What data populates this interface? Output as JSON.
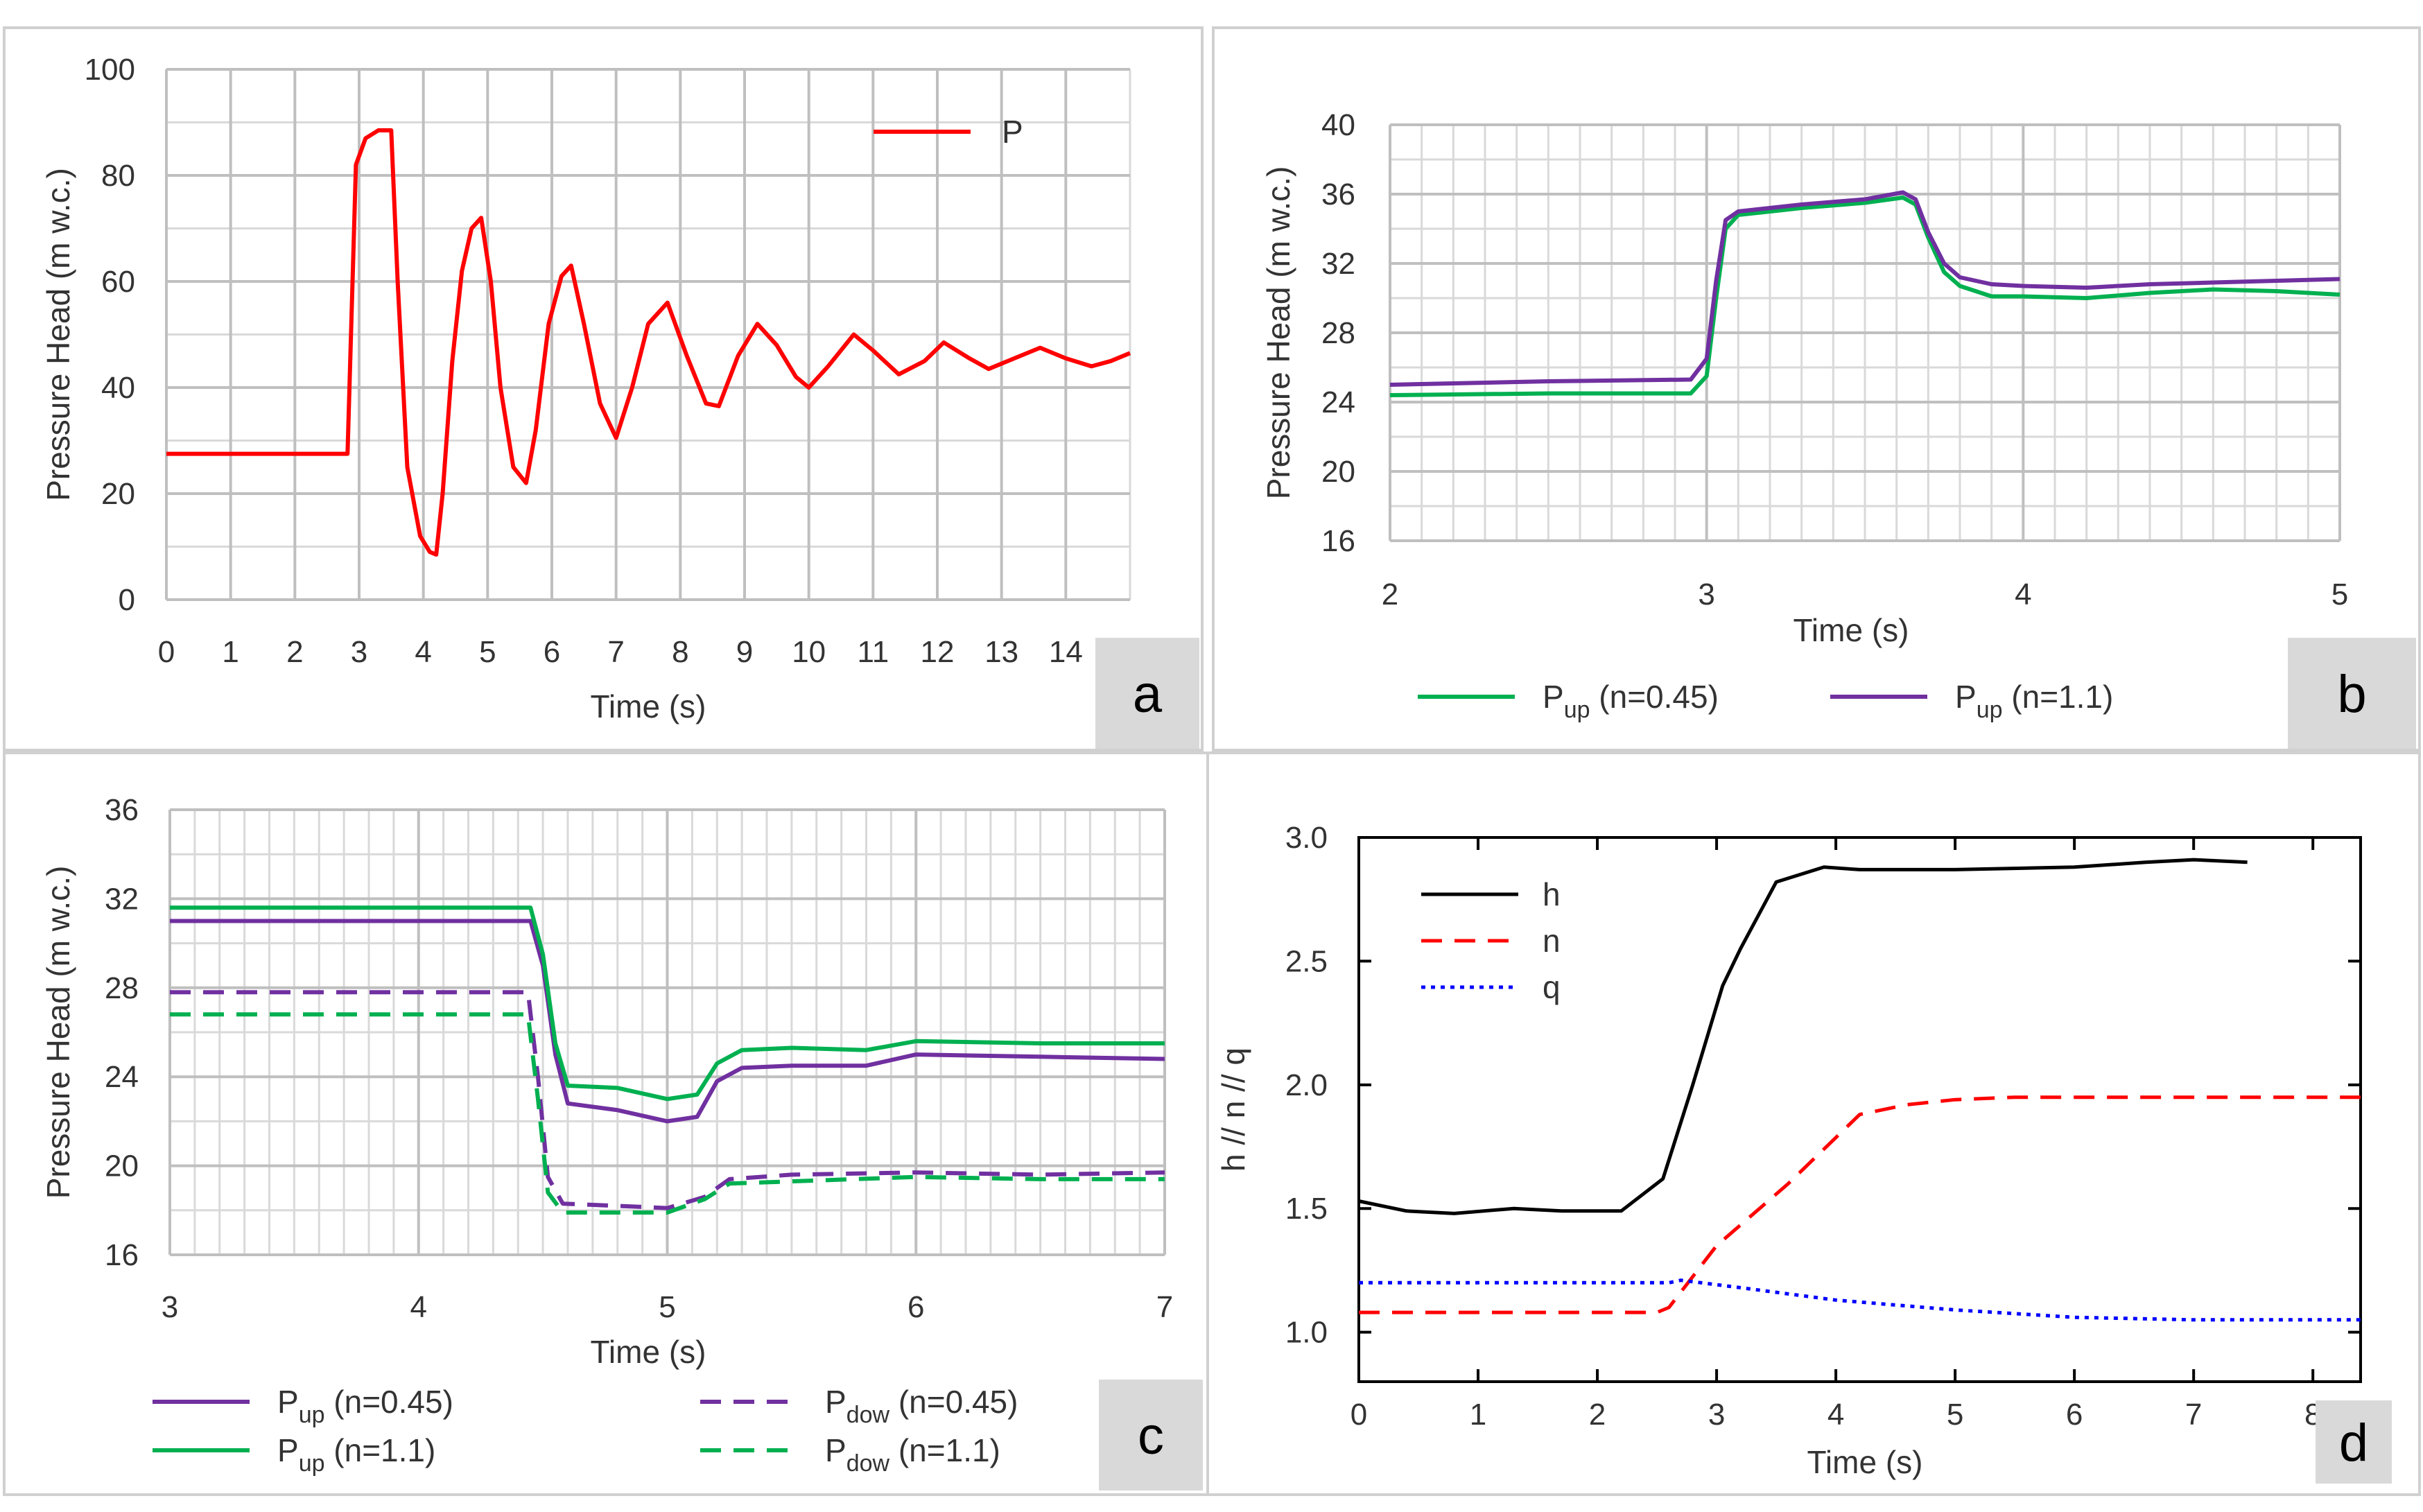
{
  "figure": {
    "panel_count": 4
  },
  "chart_data": [
    {
      "panel": "a",
      "type": "line",
      "title": "",
      "xlabel": "Time (s)",
      "ylabel": "Pressure Head (m w.c.)",
      "xlim": [
        0,
        15
      ],
      "ylim": [
        0,
        100
      ],
      "xticks": [
        "0",
        "1",
        "2",
        "3",
        "4",
        "5",
        "6",
        "7",
        "8",
        "9",
        "10",
        "11",
        "12",
        "13",
        "14"
      ],
      "yticks": [
        "0",
        "20",
        "40",
        "60",
        "80",
        "100"
      ],
      "grid": true,
      "legend_position": "top-right",
      "series": [
        {
          "name": "P",
          "color": "#ff0000",
          "dash": "solid",
          "x": [
            0,
            2.82,
            2.95,
            3.1,
            3.3,
            3.5,
            3.6,
            3.75,
            3.95,
            4.1,
            4.2,
            4.3,
            4.45,
            4.6,
            4.75,
            4.9,
            5.05,
            5.2,
            5.4,
            5.6,
            5.75,
            5.95,
            6.15,
            6.3,
            6.5,
            6.75,
            7.0,
            7.25,
            7.5,
            7.8,
            8.1,
            8.4,
            8.6,
            8.9,
            9.2,
            9.5,
            9.8,
            10.0,
            10.3,
            10.7,
            11.0,
            11.4,
            11.8,
            12.1,
            12.5,
            12.8,
            13.2,
            13.6,
            14.0,
            14.4,
            14.7,
            15.0
          ],
          "y": [
            27.5,
            27.5,
            82,
            87,
            88.5,
            88.5,
            60,
            25,
            12,
            9,
            8.5,
            20,
            45,
            62,
            70,
            72,
            60,
            40,
            25,
            22,
            32,
            52,
            61,
            63,
            52,
            37,
            30.5,
            40,
            52,
            56,
            46,
            37,
            36.5,
            46,
            52,
            48,
            42,
            40,
            44,
            50,
            47,
            42.5,
            45,
            48.5,
            45.5,
            43.5,
            45.5,
            47.5,
            45.5,
            44,
            45,
            46.5
          ]
        }
      ],
      "panel_label": "a"
    },
    {
      "panel": "b",
      "type": "line",
      "title": "",
      "xlabel": "Time (s)",
      "ylabel": "Pressure Head (m w.c.)",
      "xlim": [
        2,
        5
      ],
      "ylim": [
        16,
        40
      ],
      "xticks": [
        "2",
        "3",
        "4",
        "5"
      ],
      "yticks": [
        "16",
        "20",
        "24",
        "28",
        "32",
        "36",
        "40"
      ],
      "grid": true,
      "legend_position": "bottom",
      "series": [
        {
          "name_main": "P",
          "name_sub": "up",
          "name_suffix": " (n=0.45)",
          "color": "#00b050",
          "dash": "solid",
          "x": [
            2.0,
            2.5,
            2.95,
            3.0,
            3.03,
            3.06,
            3.1,
            3.3,
            3.5,
            3.62,
            3.66,
            3.7,
            3.75,
            3.8,
            3.9,
            4.0,
            4.2,
            4.4,
            4.6,
            4.8,
            5.0
          ],
          "y": [
            24.4,
            24.5,
            24.5,
            25.5,
            30,
            34,
            34.8,
            35.2,
            35.5,
            35.8,
            35.4,
            33.5,
            31.5,
            30.7,
            30.1,
            30.1,
            30.0,
            30.3,
            30.5,
            30.4,
            30.2
          ]
        },
        {
          "name_main": "P",
          "name_sub": "up",
          "name_suffix": " (n=1.1)",
          "color": "#7030a0",
          "dash": "solid",
          "x": [
            2.0,
            2.5,
            2.95,
            3.0,
            3.03,
            3.06,
            3.1,
            3.3,
            3.5,
            3.62,
            3.66,
            3.7,
            3.75,
            3.8,
            3.9,
            4.0,
            4.2,
            4.4,
            4.6,
            4.8,
            5.0
          ],
          "y": [
            25.0,
            25.2,
            25.3,
            26.5,
            31,
            34.5,
            35.0,
            35.4,
            35.7,
            36.1,
            35.7,
            33.8,
            32.0,
            31.2,
            30.8,
            30.7,
            30.6,
            30.8,
            30.9,
            31.0,
            31.1
          ]
        }
      ],
      "panel_label": "b"
    },
    {
      "panel": "c",
      "type": "line",
      "title": "",
      "xlabel": "Time (s)",
      "ylabel": "Pressure Head (m w.c.)",
      "xlim": [
        3,
        7
      ],
      "ylim": [
        16,
        36
      ],
      "xticks": [
        "3",
        "4",
        "5",
        "6",
        "7"
      ],
      "yticks": [
        "16",
        "20",
        "24",
        "28",
        "32",
        "36"
      ],
      "grid": true,
      "legend_position": "bottom",
      "series": [
        {
          "name_main": "P",
          "name_sub": "up",
          "name_suffix": " (n=0.45)",
          "color": "#7030a0",
          "dash": "solid",
          "x": [
            3.0,
            3.5,
            4.0,
            4.45,
            4.5,
            4.55,
            4.6,
            4.8,
            5.0,
            5.12,
            5.2,
            5.3,
            5.5,
            5.8,
            6.0,
            6.5,
            7.0
          ],
          "y": [
            31.0,
            31.0,
            31.0,
            31.0,
            29.0,
            25.0,
            22.8,
            22.5,
            22.0,
            22.2,
            23.8,
            24.4,
            24.5,
            24.5,
            25.0,
            24.9,
            24.8
          ]
        },
        {
          "name_main": "P",
          "name_sub": "up",
          "name_suffix": " (n=1.1)",
          "color": "#00b050",
          "dash": "solid",
          "x": [
            3.0,
            3.5,
            4.0,
            4.45,
            4.5,
            4.55,
            4.6,
            4.8,
            5.0,
            5.12,
            5.2,
            5.3,
            5.5,
            5.8,
            6.0,
            6.5,
            7.0
          ],
          "y": [
            31.6,
            31.6,
            31.6,
            31.6,
            29.5,
            25.5,
            23.6,
            23.5,
            23.0,
            23.2,
            24.6,
            25.2,
            25.3,
            25.2,
            25.6,
            25.5,
            25.5
          ]
        },
        {
          "name_main": "P",
          "name_sub": "dow",
          "name_suffix": " (n=0.45)",
          "color": "#7030a0",
          "dash": "dashed",
          "x": [
            3.0,
            3.5,
            4.0,
            4.44,
            4.48,
            4.52,
            4.58,
            4.8,
            5.0,
            5.15,
            5.25,
            5.5,
            6.0,
            6.5,
            7.0
          ],
          "y": [
            27.8,
            27.8,
            27.8,
            27.8,
            24.0,
            19.5,
            18.3,
            18.2,
            18.1,
            18.6,
            19.4,
            19.6,
            19.7,
            19.6,
            19.7
          ]
        },
        {
          "name_main": "P",
          "name_sub": "dow",
          "name_suffix": " (n=1.1)",
          "color": "#00b050",
          "dash": "dashed",
          "x": [
            3.0,
            3.5,
            4.0,
            4.44,
            4.48,
            4.52,
            4.58,
            4.8,
            5.0,
            5.15,
            5.25,
            5.5,
            6.0,
            6.5,
            7.0
          ],
          "y": [
            26.8,
            26.8,
            26.8,
            26.8,
            23.0,
            18.8,
            17.9,
            17.9,
            17.9,
            18.5,
            19.2,
            19.3,
            19.5,
            19.4,
            19.4
          ]
        }
      ],
      "panel_label": "c"
    },
    {
      "panel": "d",
      "type": "line",
      "title": "",
      "xlabel": "Time (s)",
      "ylabel": "h // n // q",
      "xlim": [
        0,
        8.4
      ],
      "ylim": [
        0.8,
        3.0
      ],
      "xticks": [
        "0",
        "1",
        "2",
        "3",
        "4",
        "5",
        "6",
        "7",
        "8"
      ],
      "yticks": [
        "1.0",
        "1.5",
        "2.0",
        "2.5",
        "3.0"
      ],
      "grid": false,
      "legend_position": "top-left",
      "series": [
        {
          "name": "h",
          "color": "#000000",
          "dash": "solid",
          "x": [
            0,
            0.4,
            0.8,
            1.3,
            1.7,
            2.2,
            2.55,
            2.8,
            3.05,
            3.2,
            3.5,
            3.9,
            4.2,
            5.0,
            6.0,
            6.6,
            7.0,
            7.45
          ],
          "y": [
            1.53,
            1.49,
            1.48,
            1.5,
            1.49,
            1.49,
            1.62,
            2.0,
            2.4,
            2.55,
            2.82,
            2.88,
            2.87,
            2.87,
            2.88,
            2.9,
            2.91,
            2.9
          ]
        },
        {
          "name": "n",
          "color": "#ff0000",
          "dash": "dashed",
          "x": [
            0,
            1.0,
            2.5,
            2.6,
            3.0,
            3.6,
            4.2,
            4.6,
            5.0,
            5.5,
            6.0,
            8.4
          ],
          "y": [
            1.08,
            1.08,
            1.08,
            1.1,
            1.35,
            1.6,
            1.88,
            1.92,
            1.94,
            1.95,
            1.95,
            1.95
          ]
        },
        {
          "name": "q",
          "color": "#0000ff",
          "dash": "dotted",
          "x": [
            0,
            1.0,
            2.0,
            2.6,
            2.7,
            3.2,
            4.0,
            5.0,
            6.0,
            7.0,
            8.4
          ],
          "y": [
            1.2,
            1.2,
            1.2,
            1.2,
            1.21,
            1.18,
            1.13,
            1.09,
            1.06,
            1.05,
            1.05
          ]
        }
      ],
      "panel_label": "d"
    }
  ]
}
